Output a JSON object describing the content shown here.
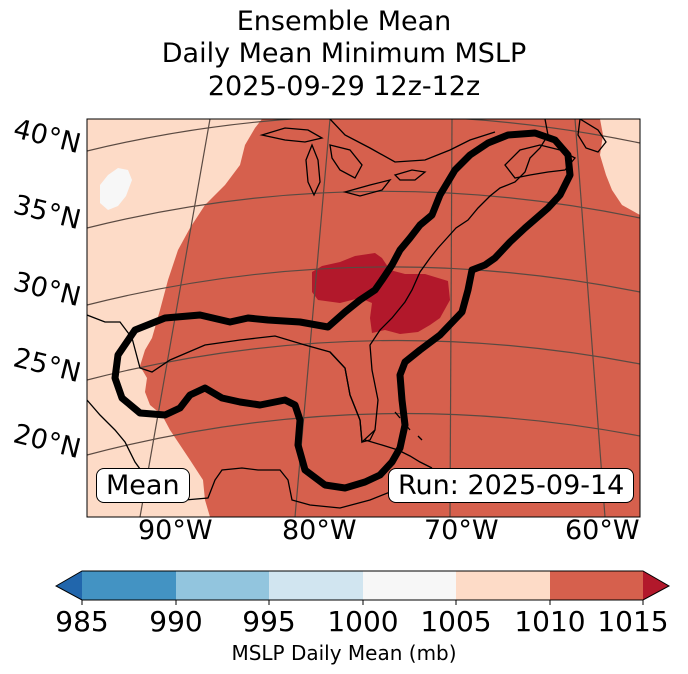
{
  "title": {
    "line1": "Ensemble Mean",
    "line2": "Daily Mean Minimum MSLP",
    "line3": "2025-09-29 12z-12z"
  },
  "map": {
    "lat_labels": [
      "40°N",
      "35°N",
      "30°N",
      "25°N",
      "20°N"
    ],
    "lon_labels": [
      "90°W",
      "80°W",
      "70°W",
      "60°W"
    ],
    "annotation_left": "Mean",
    "annotation_right": "Run: 2025-09-14",
    "colors": {
      "ocean_field": "#d6604d",
      "high_pressure_core": "#b2182b",
      "light_region": "#fddbc7",
      "near_white": "#f7f7f7",
      "contour": "#000000"
    }
  },
  "colorbar": {
    "ticks": [
      "985",
      "990",
      "995",
      "1000",
      "1005",
      "1010",
      "1015"
    ],
    "segment_colors": [
      "#4393c3",
      "#92c5de",
      "#d1e5f0",
      "#f7f7f7",
      "#fddbc7",
      "#d6604d"
    ],
    "under_color": "#2166ac",
    "over_color": "#b2182b",
    "label": "MSLP Daily Mean (mb)"
  }
}
